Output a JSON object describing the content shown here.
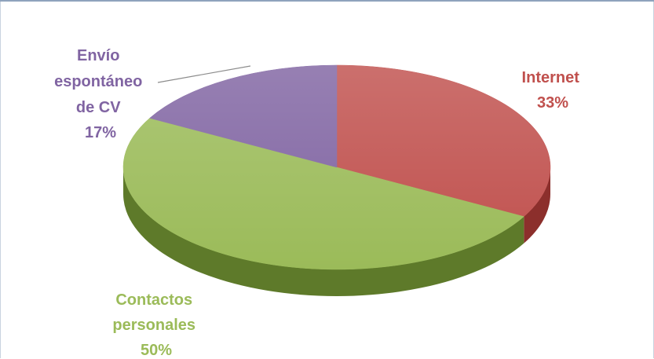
{
  "chart_data": {
    "type": "pie",
    "style": "3d",
    "title": "",
    "slices": [
      {
        "name": "Internet",
        "value": 33,
        "label": "33%",
        "color": "#c0504d",
        "dark": "#8c2f2c"
      },
      {
        "name": "Contactos personales",
        "value": 50,
        "label": "50%",
        "color": "#9bbb59",
        "dark": "#5e7a2a"
      },
      {
        "name": "Envío espontáneo de CV",
        "value": 17,
        "label": "17%",
        "color": "#8064a2",
        "dark": "#4f3a6b"
      }
    ]
  },
  "labels": {
    "internet": {
      "line1": "Internet",
      "pct": "33%"
    },
    "contactos": {
      "line1": "Contactos",
      "line2": "personales",
      "pct": "50%"
    },
    "envio": {
      "line1": "Envío",
      "line2": "espontáneo",
      "line3": "de CV",
      "pct": "17%"
    }
  }
}
